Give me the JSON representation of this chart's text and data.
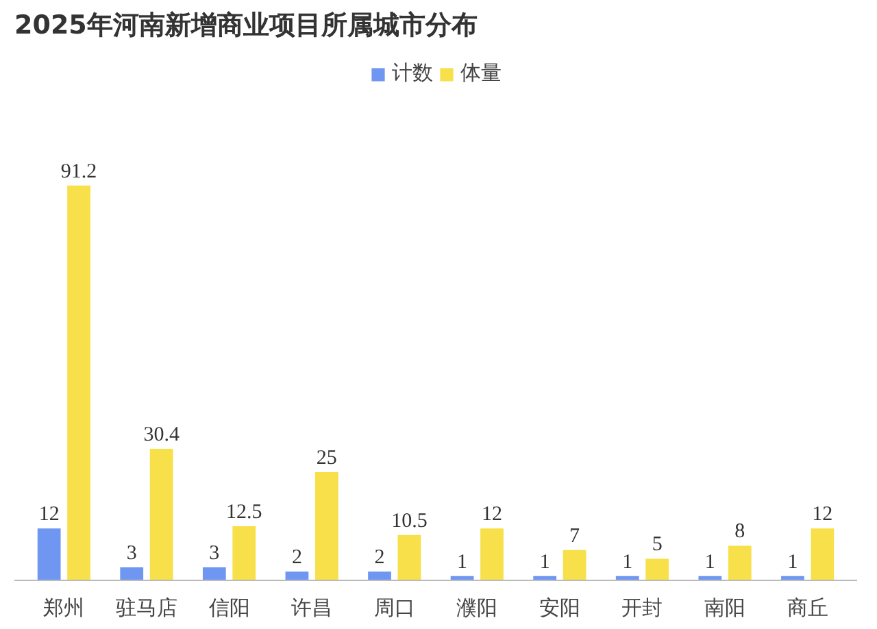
{
  "chart_data": {
    "type": "bar",
    "title": "2025年河南新增商业项目所属城市分布",
    "categories": [
      "郑州",
      "驻马店",
      "信阳",
      "许昌",
      "周口",
      "濮阳",
      "安阳",
      "开封",
      "南阳",
      "商丘"
    ],
    "series": [
      {
        "name": "计数",
        "color": "#6f97f2",
        "values": [
          12,
          3,
          3,
          2,
          2,
          1,
          1,
          1,
          1,
          1
        ]
      },
      {
        "name": "体量",
        "color": "#f7e04a",
        "values": [
          91.2,
          30.4,
          12.5,
          25,
          10.5,
          12,
          7,
          5,
          8,
          12
        ]
      }
    ],
    "data_labels": true,
    "legend": "top"
  }
}
